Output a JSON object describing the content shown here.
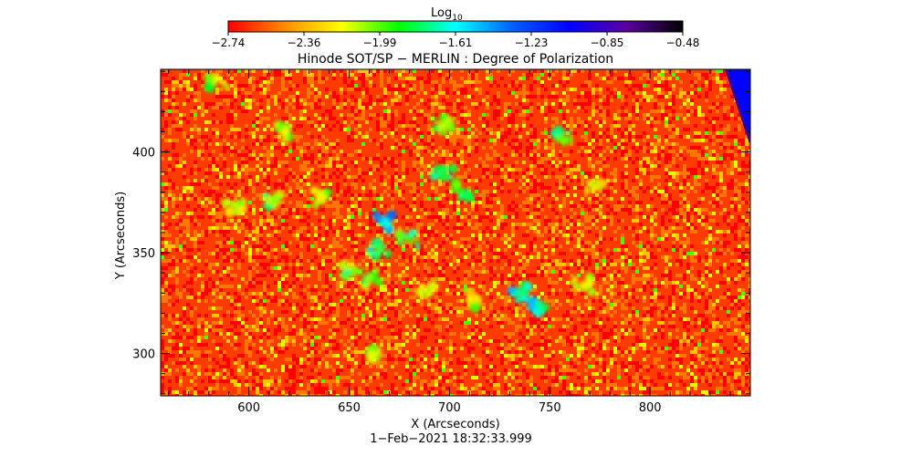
{
  "chart_data": {
    "type": "heatmap",
    "title": "Hinode SOT/SP − MERLIN : Degree of Polarization",
    "xlabel": "X (Arcseconds)",
    "ylabel": "Y (Arcseconds)",
    "timestamp": "1−Feb−2021 18:32:33.999",
    "xlim": [
      556,
      850
    ],
    "ylim": [
      279,
      441
    ],
    "x_ticks": [
      600,
      650,
      700,
      750,
      800
    ],
    "y_ticks": [
      300,
      350,
      400
    ],
    "colorbar": {
      "label": "Log",
      "label_sub": "10",
      "range": [
        -2.74,
        -0.48
      ],
      "tick_labels": [
        "−2.74",
        "−2.36",
        "−1.99",
        "−1.61",
        "−1.23",
        "−0.85",
        "−0.48"
      ],
      "colors": [
        "#ff0000",
        "#ff8c00",
        "#ffff00",
        "#00ff00",
        "#00ffff",
        "#0060ff",
        "#0000ff",
        "#5a00a0",
        "#000000"
      ]
    },
    "background_level": -2.62,
    "features": [
      {
        "x": 735,
        "y": 330,
        "level": -1.75
      },
      {
        "x": 745,
        "y": 322,
        "level": -1.7
      },
      {
        "x": 697,
        "y": 388,
        "level": -1.85
      },
      {
        "x": 705,
        "y": 381,
        "level": -1.9
      },
      {
        "x": 668,
        "y": 365,
        "level": -1.6
      },
      {
        "x": 665,
        "y": 352,
        "level": -1.95
      },
      {
        "x": 680,
        "y": 357,
        "level": -1.95
      },
      {
        "x": 652,
        "y": 341,
        "level": -2.0
      },
      {
        "x": 660,
        "y": 338,
        "level": -2.05
      },
      {
        "x": 755,
        "y": 407,
        "level": -2.0
      },
      {
        "x": 612,
        "y": 375,
        "level": -2.05
      },
      {
        "x": 593,
        "y": 374,
        "level": -2.1
      },
      {
        "x": 697,
        "y": 413,
        "level": -2.1
      },
      {
        "x": 690,
        "y": 332,
        "level": -2.1
      },
      {
        "x": 584,
        "y": 436,
        "level": -2.15
      },
      {
        "x": 661,
        "y": 300,
        "level": -2.15
      },
      {
        "x": 767,
        "y": 334,
        "level": -2.2
      },
      {
        "x": 618,
        "y": 410,
        "level": -2.2
      },
      {
        "x": 637,
        "y": 377,
        "level": -2.2
      },
      {
        "x": 773,
        "y": 382,
        "level": -2.25
      },
      {
        "x": 713,
        "y": 327,
        "level": -2.25
      }
    ],
    "off_limb": {
      "edge_top_x": 838,
      "edge_bottom_x": 850,
      "edge_bottom_y": 405,
      "level": -1.05
    }
  }
}
